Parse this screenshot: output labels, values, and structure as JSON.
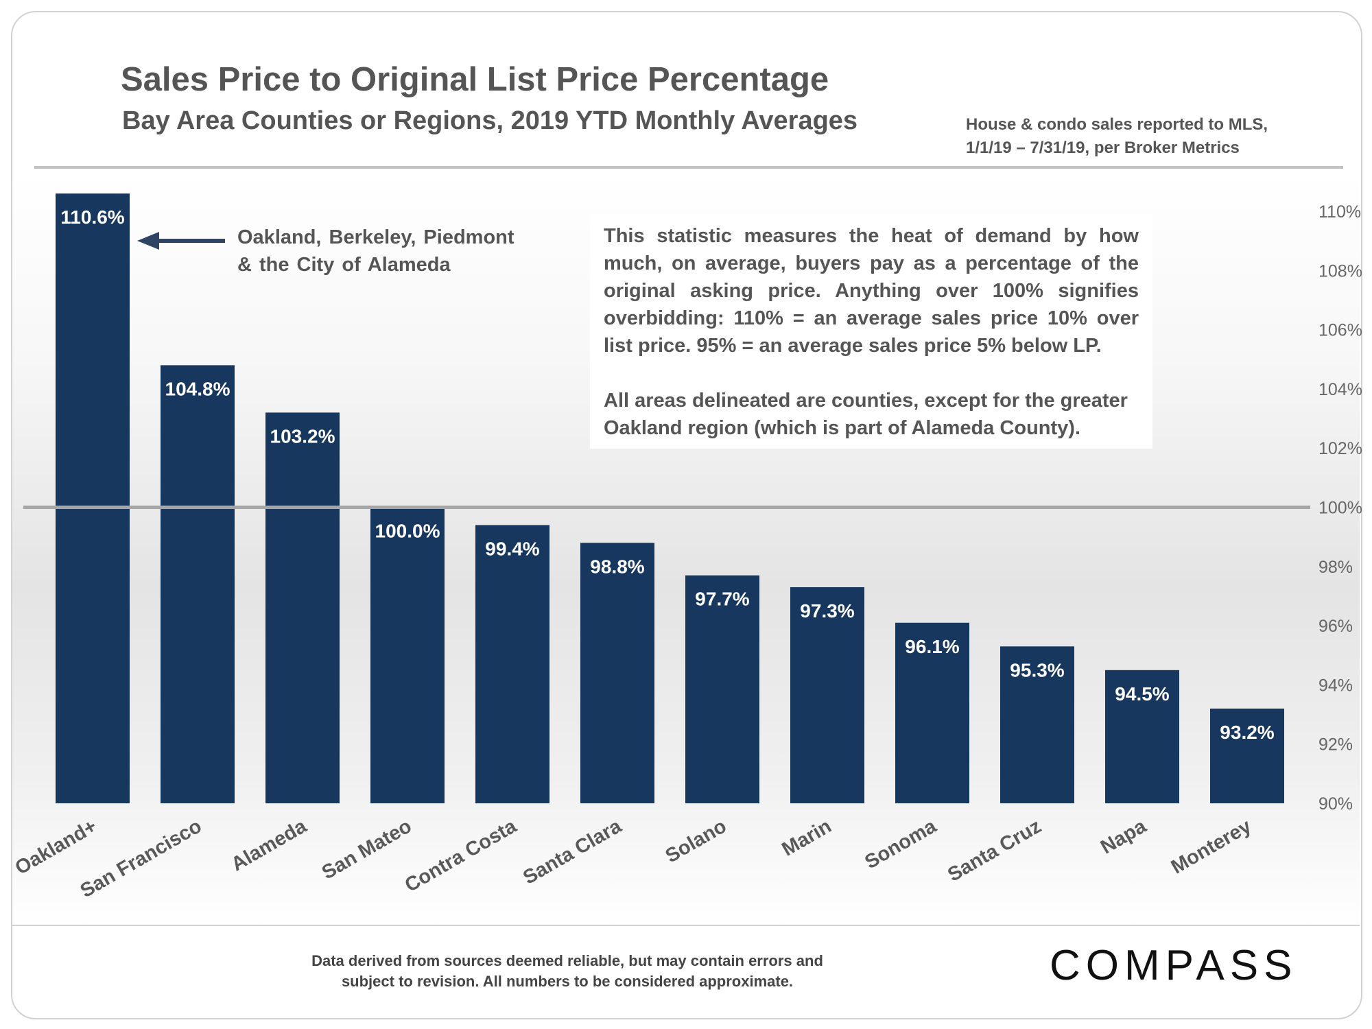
{
  "title": "Sales Price to Original List Price Percentage",
  "subtitle": "Bay Area Counties or Regions, 2019 YTD Monthly Averages",
  "source_line1": "House & condo sales reported to MLS,",
  "source_line2": "1/1/19 – 7/31/19, per Broker Metrics",
  "annotation": {
    "oakland_line1": "Oakland, Berkeley, Piedmont",
    "oakland_line2": "& the City of Alameda"
  },
  "note": {
    "para1": "This statistic measures the heat of demand by how much, on average, buyers pay as a percentage of the original asking price. Anything over 100% signifies overbidding:  110% = an average sales price 10% over list price. 95% = an average sales price 5% below LP.",
    "para2": "All areas delineated are counties, except for the greater Oakland region (which is part of Alameda County)."
  },
  "footer": {
    "disclaimer_line1": "Data derived from sources deemed reliable, but may contain errors and",
    "disclaimer_line2": "subject to revision. All numbers to be considered approximate.",
    "logo": "COMPASS"
  },
  "colors": {
    "bar": "#17375e",
    "reference_line": "#a6a6a6",
    "tick_text": "#666666",
    "category_text": "#595959"
  },
  "chart_data": {
    "type": "bar",
    "title": "Sales Price to Original List Price Percentage",
    "subtitle": "Bay Area Counties or Regions, 2019 YTD Monthly Averages",
    "categories": [
      "Oakland+",
      "San Francisco",
      "Alameda",
      "San Mateo",
      "Contra Costa",
      "Santa Clara",
      "Solano",
      "Marin",
      "Sonoma",
      "Santa Cruz",
      "Napa",
      "Monterey"
    ],
    "values": [
      110.6,
      104.8,
      103.2,
      100.0,
      99.4,
      98.8,
      97.7,
      97.3,
      96.1,
      95.3,
      94.5,
      93.2
    ],
    "value_labels": [
      "110.6%",
      "104.8%",
      "103.2%",
      "100.0%",
      "99.4%",
      "98.8%",
      "97.7%",
      "97.3%",
      "96.1%",
      "95.3%",
      "94.5%",
      "93.2%"
    ],
    "ylim": [
      90,
      110
    ],
    "yticks": [
      90,
      92,
      94,
      96,
      98,
      100,
      102,
      104,
      106,
      108,
      110
    ],
    "ytick_labels": [
      "90%",
      "92%",
      "94%",
      "96%",
      "98%",
      "100%",
      "102%",
      "104%",
      "106%",
      "108%",
      "110%"
    ],
    "y_axis_side": "right",
    "reference_line": 100,
    "grid": false,
    "xlabel": "",
    "ylabel": ""
  }
}
